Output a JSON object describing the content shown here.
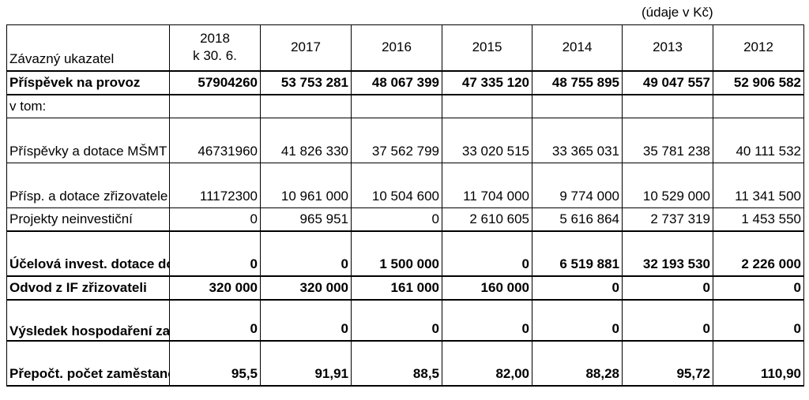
{
  "units_note": "(údaje v Kč)",
  "header": {
    "label": "Závazný ukazatel",
    "years": [
      {
        "line1": "2018",
        "line2": "k 30. 6."
      },
      {
        "line1": "2017",
        "line2": ""
      },
      {
        "line1": "2016",
        "line2": ""
      },
      {
        "line1": "2015",
        "line2": ""
      },
      {
        "line1": "2014",
        "line2": ""
      },
      {
        "line1": "2013",
        "line2": ""
      },
      {
        "line1": "2012",
        "line2": ""
      }
    ]
  },
  "rows": [
    {
      "label": "Příspěvek na provoz",
      "values": [
        "57904260",
        "53 753 281",
        "48 067 399",
        "47 335 120",
        "48 755 895",
        "49 047 557",
        "52 906 582"
      ]
    },
    {
      "label": "v tom:",
      "values": [
        "",
        "",
        "",
        "",
        "",
        "",
        ""
      ]
    },
    {
      "label": "Příspěvky a dotace MŠMT",
      "values": [
        "46731960",
        "41 826 330",
        "37 562 799",
        "33 020 515",
        "33 365 031",
        "35 781 238",
        "40 111 532"
      ]
    },
    {
      "label": "Přísp. a dotace zřizovatele",
      "values": [
        "11172300",
        "10 961 000",
        "10 504 600",
        "11 704 000",
        "9 774 000",
        "10 529 000",
        "11 341 500"
      ]
    },
    {
      "label": "Projekty neinvestiční",
      "values": [
        "0",
        "965 951",
        "0",
        "2 610 605",
        "5 616 864",
        "2 737 319",
        "1 453 550"
      ]
    },
    {
      "label": "Účelová invest. dotace do IF",
      "values": [
        "0",
        "0",
        "1 500 000",
        "0",
        "6 519 881",
        "32 193 530",
        "2 226 000"
      ]
    },
    {
      "label": "Odvod z IF zřizovateli",
      "values": [
        "320 000",
        "320 000",
        "161 000",
        "160 000",
        "0",
        "0",
        "0"
      ]
    },
    {
      "label": "Výsledek hospodaření za rok",
      "values": [
        "0",
        "0",
        "0",
        "0",
        "0",
        "0",
        "0"
      ]
    },
    {
      "label": "Přepočt. počet zaměstanců",
      "values": [
        "95,5",
        "91,91",
        "88,5",
        "82,00",
        "88,28",
        "95,72",
        "110,90"
      ]
    }
  ]
}
